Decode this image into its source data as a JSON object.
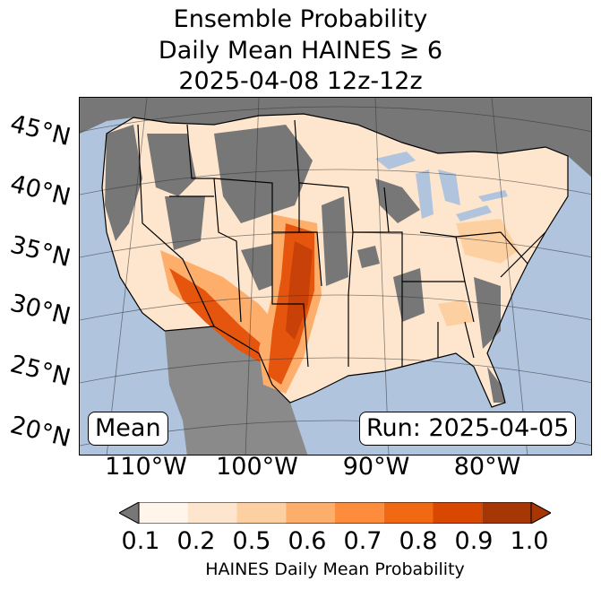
{
  "title": {
    "line1": "Ensemble Probability",
    "line2": "Daily Mean HAINES ≥ 6",
    "line3": "2025-04-08 12z-12z"
  },
  "map": {
    "lat_labels": [
      "45°N",
      "40°N",
      "35°N",
      "30°N",
      "25°N",
      "20°N"
    ],
    "lon_labels": [
      "110°W",
      "100°W",
      "90°W",
      "80°W"
    ],
    "mean_label": "Mean",
    "run_label": "Run: 2025-04-05",
    "colors": {
      "ocean": "#b0c4de",
      "masked": "#777777",
      "land_low": "#fee6ce",
      "mid": "#fdae6b",
      "high": "#e6550d",
      "top": "#c84108"
    }
  },
  "colorbar": {
    "ticks": [
      "0.1",
      "0.2",
      "0.5",
      "0.6",
      "0.7",
      "0.8",
      "0.9",
      "1.0"
    ],
    "colors": [
      "#fff5eb",
      "#fee6ce",
      "#fdd0a2",
      "#fdae6b",
      "#fd8d3c",
      "#f16913",
      "#d94801",
      "#a63603"
    ],
    "under_color": "#777777",
    "over_color": "#a63603",
    "label": "HAINES Daily Mean Probability"
  }
}
